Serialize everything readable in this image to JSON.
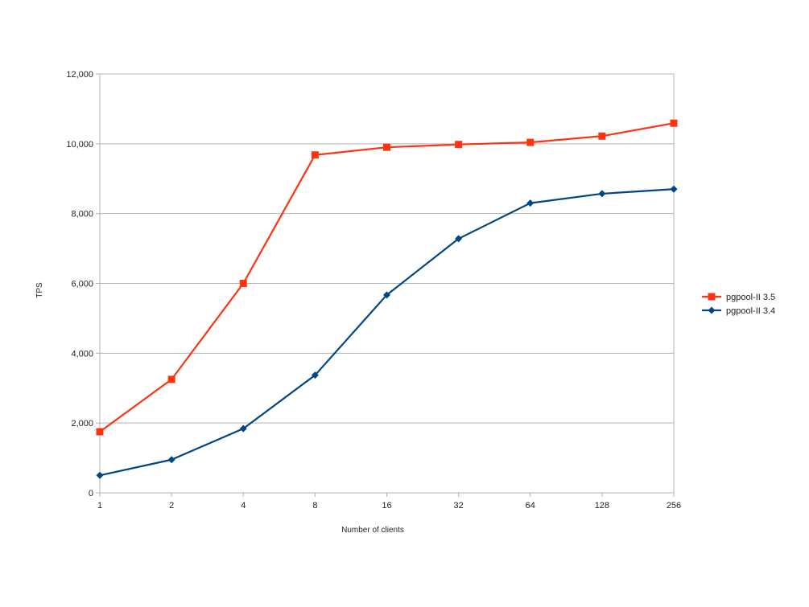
{
  "chart_data": {
    "type": "line",
    "title": "",
    "xlabel": "Number of clients",
    "ylabel": "TPS",
    "categories": [
      "1",
      "2",
      "4",
      "8",
      "16",
      "32",
      "64",
      "128",
      "256"
    ],
    "ylim": [
      0,
      12000
    ],
    "yticks": [
      0,
      2000,
      4000,
      6000,
      8000,
      10000,
      12000
    ],
    "ytick_labels": [
      "0",
      "2,000",
      "4,000",
      "6,000",
      "8,000",
      "10,000",
      "12,000"
    ],
    "grid": true,
    "legend_position": "right",
    "series": [
      {
        "name": "pgpool-II 3.5",
        "color": "#ff3311",
        "marker": "square",
        "values": [
          1750,
          3250,
          6000,
          9680,
          9900,
          9980,
          10040,
          10220,
          10590
        ]
      },
      {
        "name": "pgpool-II 3.4",
        "color": "#004586",
        "marker": "diamond",
        "values": [
          500,
          950,
          1840,
          3370,
          5670,
          7280,
          8300,
          8570,
          8700
        ]
      }
    ]
  }
}
